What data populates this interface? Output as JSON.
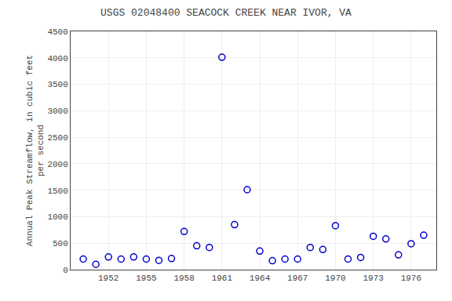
{
  "chart_data": {
    "type": "scatter",
    "title": "USGS 02048400 SEACOCK CREEK NEAR IVOR, VA",
    "ylabel": "Annual Peak Streamflow, in cubic feet\nper second",
    "x": [
      1950,
      1951,
      1952,
      1953,
      1954,
      1955,
      1956,
      1957,
      1958,
      1959,
      1960,
      1961,
      1962,
      1963,
      1964,
      1965,
      1966,
      1967,
      1968,
      1969,
      1970,
      1971,
      1972,
      1973,
      1974,
      1975,
      1976,
      1977
    ],
    "values": [
      200,
      100,
      240,
      200,
      240,
      200,
      175,
      210,
      720,
      450,
      420,
      4010,
      850,
      1510,
      350,
      170,
      200,
      200,
      420,
      380,
      830,
      200,
      230,
      630,
      580,
      280,
      490,
      650
    ],
    "color": "#0000cc",
    "marker": "circle-open",
    "xlim": [
      1949,
      1978
    ],
    "xticks": [
      1952,
      1955,
      1958,
      1961,
      1964,
      1967,
      1970,
      1973,
      1976
    ],
    "ylim": [
      0,
      4500
    ],
    "yticks": [
      0,
      500,
      1000,
      1500,
      2000,
      2500,
      3000,
      3500,
      4000,
      4500
    ],
    "grid": true
  }
}
